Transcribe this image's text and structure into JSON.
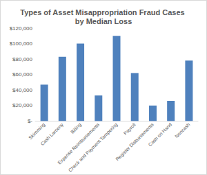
{
  "chart_data": {
    "type": "bar",
    "title": "Types of Asset Misappropriation Fraud Cases by Median Loss",
    "categories": [
      "Skimming",
      "Cash Larceny",
      "Billing",
      "Expense Reimbursements",
      "Check and Payment Tampering",
      "Payroll",
      "Register Disbursements",
      "Cash on Hand",
      "Noncash"
    ],
    "values": [
      47000,
      83000,
      100000,
      33000,
      110000,
      62000,
      20000,
      26000,
      78000
    ],
    "color": "#4f81bd",
    "ylim": [
      0,
      120000
    ],
    "yticks": [
      {
        "value": 0,
        "label": "$-"
      },
      {
        "value": 20000,
        "label": "$20,000"
      },
      {
        "value": 40000,
        "label": "$40,000"
      },
      {
        "value": 60000,
        "label": "$60,000"
      },
      {
        "value": 80000,
        "label": "$80,000"
      },
      {
        "value": 100000,
        "label": "$100,000"
      },
      {
        "value": 120000,
        "label": "$120,000"
      }
    ],
    "grid": false
  }
}
